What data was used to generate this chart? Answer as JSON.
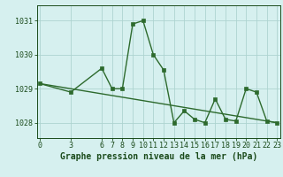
{
  "x_data": [
    0,
    3,
    6,
    7,
    8,
    9,
    10,
    11,
    12,
    13,
    14,
    15,
    16,
    17,
    18,
    19,
    20,
    21,
    22,
    23
  ],
  "y_data": [
    1029.15,
    1028.9,
    1029.6,
    1029.0,
    1029.0,
    1030.9,
    1031.0,
    1030.0,
    1029.55,
    1028.0,
    1028.35,
    1028.1,
    1028.0,
    1028.7,
    1028.1,
    1028.05,
    1029.0,
    1028.9,
    1028.05,
    1028.0
  ],
  "trend_x": [
    0,
    23
  ],
  "trend_y": [
    1029.15,
    1028.0
  ],
  "x_ticks": [
    0,
    3,
    6,
    7,
    8,
    9,
    10,
    11,
    12,
    13,
    14,
    15,
    16,
    17,
    18,
    19,
    20,
    21,
    22,
    23
  ],
  "y_ticks": [
    1028,
    1029,
    1030,
    1031
  ],
  "ylim": [
    1027.55,
    1031.45
  ],
  "xlim": [
    -0.3,
    23.3
  ],
  "line_color": "#2d6a2d",
  "trend_color": "#2d6a2d",
  "bg_color": "#d6f0ef",
  "grid_color": "#aed4d0",
  "tick_label_color": "#1a4a1a",
  "xlabel": "Graphe pression niveau de la mer (hPa)",
  "xlabel_color": "#1a4a1a",
  "xlabel_fontsize": 7.0,
  "tick_fontsize": 6.0,
  "marker_size": 2.5,
  "line_width": 1.0
}
